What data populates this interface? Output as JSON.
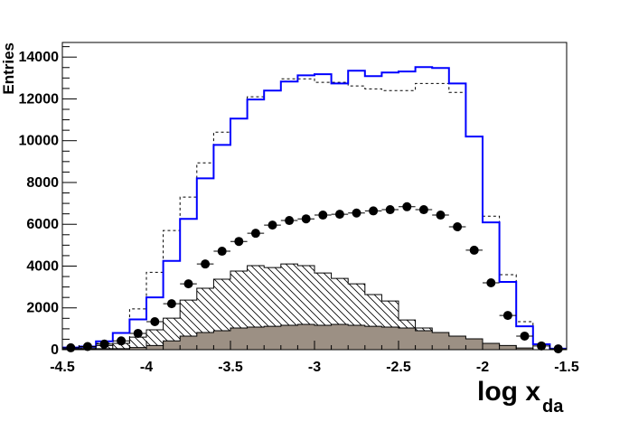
{
  "chart_data": {
    "type": "histogram",
    "title": "",
    "xlabel": "log x",
    "xlabel_subscript": "da",
    "ylabel": "Entries",
    "xlim": [
      -4.5,
      -1.5
    ],
    "ylim": [
      0,
      14700
    ],
    "bin_edges_start": -4.5,
    "bin_width": 0.1,
    "grid": false,
    "x_ticks": [
      "-4.5",
      "-4",
      "-3.5",
      "-3",
      "-2.5",
      "-2",
      "-1.5"
    ],
    "x_tick_values": [
      -4.5,
      -4,
      -3.5,
      -3,
      -2.5,
      -2,
      -1.5
    ],
    "y_ticks": [
      "0",
      "2000",
      "4000",
      "6000",
      "8000",
      "10000",
      "12000",
      "14000"
    ],
    "y_tick_values": [
      0,
      2000,
      4000,
      6000,
      8000,
      10000,
      12000,
      14000
    ],
    "series": [
      {
        "style": "solid-line",
        "color": "#0000ff",
        "values": [
          100,
          150,
          400,
          800,
          1450,
          2500,
          4250,
          6260,
          8200,
          9800,
          11060,
          11970,
          12400,
          12830,
          13130,
          13180,
          12740,
          13350,
          13090,
          13260,
          13310,
          13520,
          13480,
          12740,
          10200,
          6090,
          3240,
          1120,
          260,
          50
        ]
      },
      {
        "style": "dashed-line",
        "color": "#000000",
        "values": [
          100,
          150,
          300,
          300,
          1950,
          3700,
          5700,
          7300,
          8940,
          10410,
          11060,
          12100,
          12400,
          12960,
          12960,
          12790,
          12790,
          12620,
          12480,
          12400,
          12400,
          12740,
          12740,
          12310,
          10200,
          6390,
          3590,
          1340,
          260,
          50
        ]
      },
      {
        "style": "hatched-fill",
        "color": "#000000",
        "values": [
          50,
          80,
          200,
          300,
          600,
          950,
          1510,
          2370,
          2940,
          3370,
          3760,
          4020,
          3930,
          4100,
          4020,
          3670,
          3410,
          3150,
          2640,
          2330,
          1420,
          1040,
          730,
          430,
          300,
          260,
          100,
          40,
          0,
          0
        ]
      },
      {
        "style": "solid-fill",
        "color": "#9c9084",
        "values": [
          20,
          30,
          50,
          50,
          100,
          200,
          420,
          650,
          820,
          910,
          1040,
          1080,
          1120,
          1170,
          1210,
          1170,
          1210,
          1170,
          1120,
          1080,
          1040,
          910,
          820,
          650,
          520,
          300,
          200,
          80,
          0,
          0
        ]
      },
      {
        "style": "markers",
        "color": "#000000",
        "values": [
          90,
          150,
          270,
          420,
          780,
          1340,
          2200,
          3150,
          4100,
          4710,
          5180,
          5570,
          5960,
          6180,
          6260,
          6440,
          6480,
          6540,
          6640,
          6700,
          6840,
          6700,
          6440,
          5880,
          4760,
          3200,
          1640,
          650,
          180,
          40
        ]
      }
    ]
  }
}
